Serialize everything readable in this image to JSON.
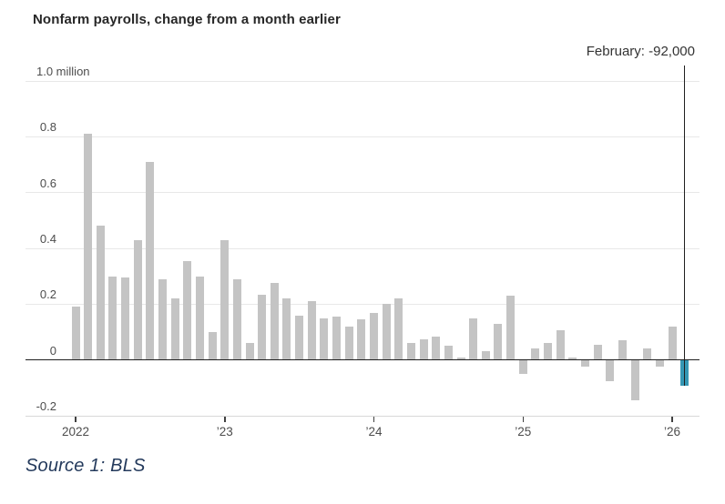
{
  "title": "Nonfarm payrolls, change from a month earlier",
  "annotation": {
    "label": "February: -92,000"
  },
  "source": "Source 1: BLS",
  "colors": {
    "bar": "#c4c4c4",
    "highlight_bar": "#3597b4",
    "zero_line": "#1f1f1f",
    "gridline": "#e8e8e8",
    "axis_line": "#d9d9d9",
    "axis_text": "#4d4d4d",
    "title_text": "#272727",
    "annotation_text": "#333333",
    "source_text": "#243a5c"
  },
  "chart_data": {
    "type": "bar",
    "title": "Nonfarm payrolls, change from a month earlier",
    "unit": "million",
    "ylim": [
      -0.2,
      1.0
    ],
    "grid": true,
    "yticks": [
      {
        "v": 1.0,
        "label": "1.0 million"
      },
      {
        "v": 0.8,
        "label": "0.8"
      },
      {
        "v": 0.6,
        "label": "0.6"
      },
      {
        "v": 0.4,
        "label": "0.4"
      },
      {
        "v": 0.2,
        "label": "0.2"
      },
      {
        "v": 0,
        "label": "0"
      },
      {
        "v": -0.2,
        "label": "-0.2"
      }
    ],
    "xticks": [
      {
        "month_index": 0,
        "label": "2022"
      },
      {
        "month_index": 12,
        "label": "’23"
      },
      {
        "month_index": 24,
        "label": "’24"
      },
      {
        "month_index": 36,
        "label": "’25"
      },
      {
        "month_index": 48,
        "label": "’26"
      }
    ],
    "x": [
      "Jan 2022",
      "Feb 2022",
      "Mar 2022",
      "Apr 2022",
      "May 2022",
      "Jun 2022",
      "Jul 2022",
      "Aug 2022",
      "Sep 2022",
      "Oct 2022",
      "Nov 2022",
      "Dec 2022",
      "Jan 2023",
      "Feb 2023",
      "Mar 2023",
      "Apr 2023",
      "May 2023",
      "Jun 2023",
      "Jul 2023",
      "Aug 2023",
      "Sep 2023",
      "Oct 2023",
      "Nov 2023",
      "Dec 2023",
      "Jan 2024",
      "Feb 2024",
      "Mar 2024",
      "Apr 2024",
      "May 2024",
      "Jun 2024",
      "Jul 2024",
      "Aug 2024",
      "Sep 2024",
      "Oct 2024",
      "Nov 2024",
      "Dec 2024",
      "Jan 2025",
      "Feb 2025",
      "Mar 2025",
      "Apr 2025",
      "May 2025",
      "Jun 2025",
      "Jul 2025",
      "Aug 2025",
      "Sep 2025",
      "Oct 2025",
      "Nov 2025",
      "Dec 2025",
      "Jan 2026",
      "Feb 2026"
    ],
    "values": [
      0.19,
      0.81,
      0.48,
      0.3,
      0.295,
      0.43,
      0.71,
      0.29,
      0.22,
      0.355,
      0.3,
      0.1,
      0.43,
      0.29,
      0.06,
      0.235,
      0.275,
      0.22,
      0.16,
      0.21,
      0.15,
      0.155,
      0.12,
      0.145,
      0.17,
      0.2,
      0.22,
      0.06,
      0.075,
      0.085,
      0.05,
      0.01,
      0.15,
      0.03,
      0.13,
      0.23,
      -0.05,
      0.04,
      0.06,
      0.105,
      0.01,
      -0.025,
      0.055,
      -0.075,
      0.07,
      -0.145,
      0.04,
      -0.025,
      0.12,
      -0.092
    ],
    "highlight": {
      "month_index": 49,
      "month": "Feb 2026",
      "value": -0.092,
      "label": "February: -92,000"
    },
    "legend": null
  }
}
